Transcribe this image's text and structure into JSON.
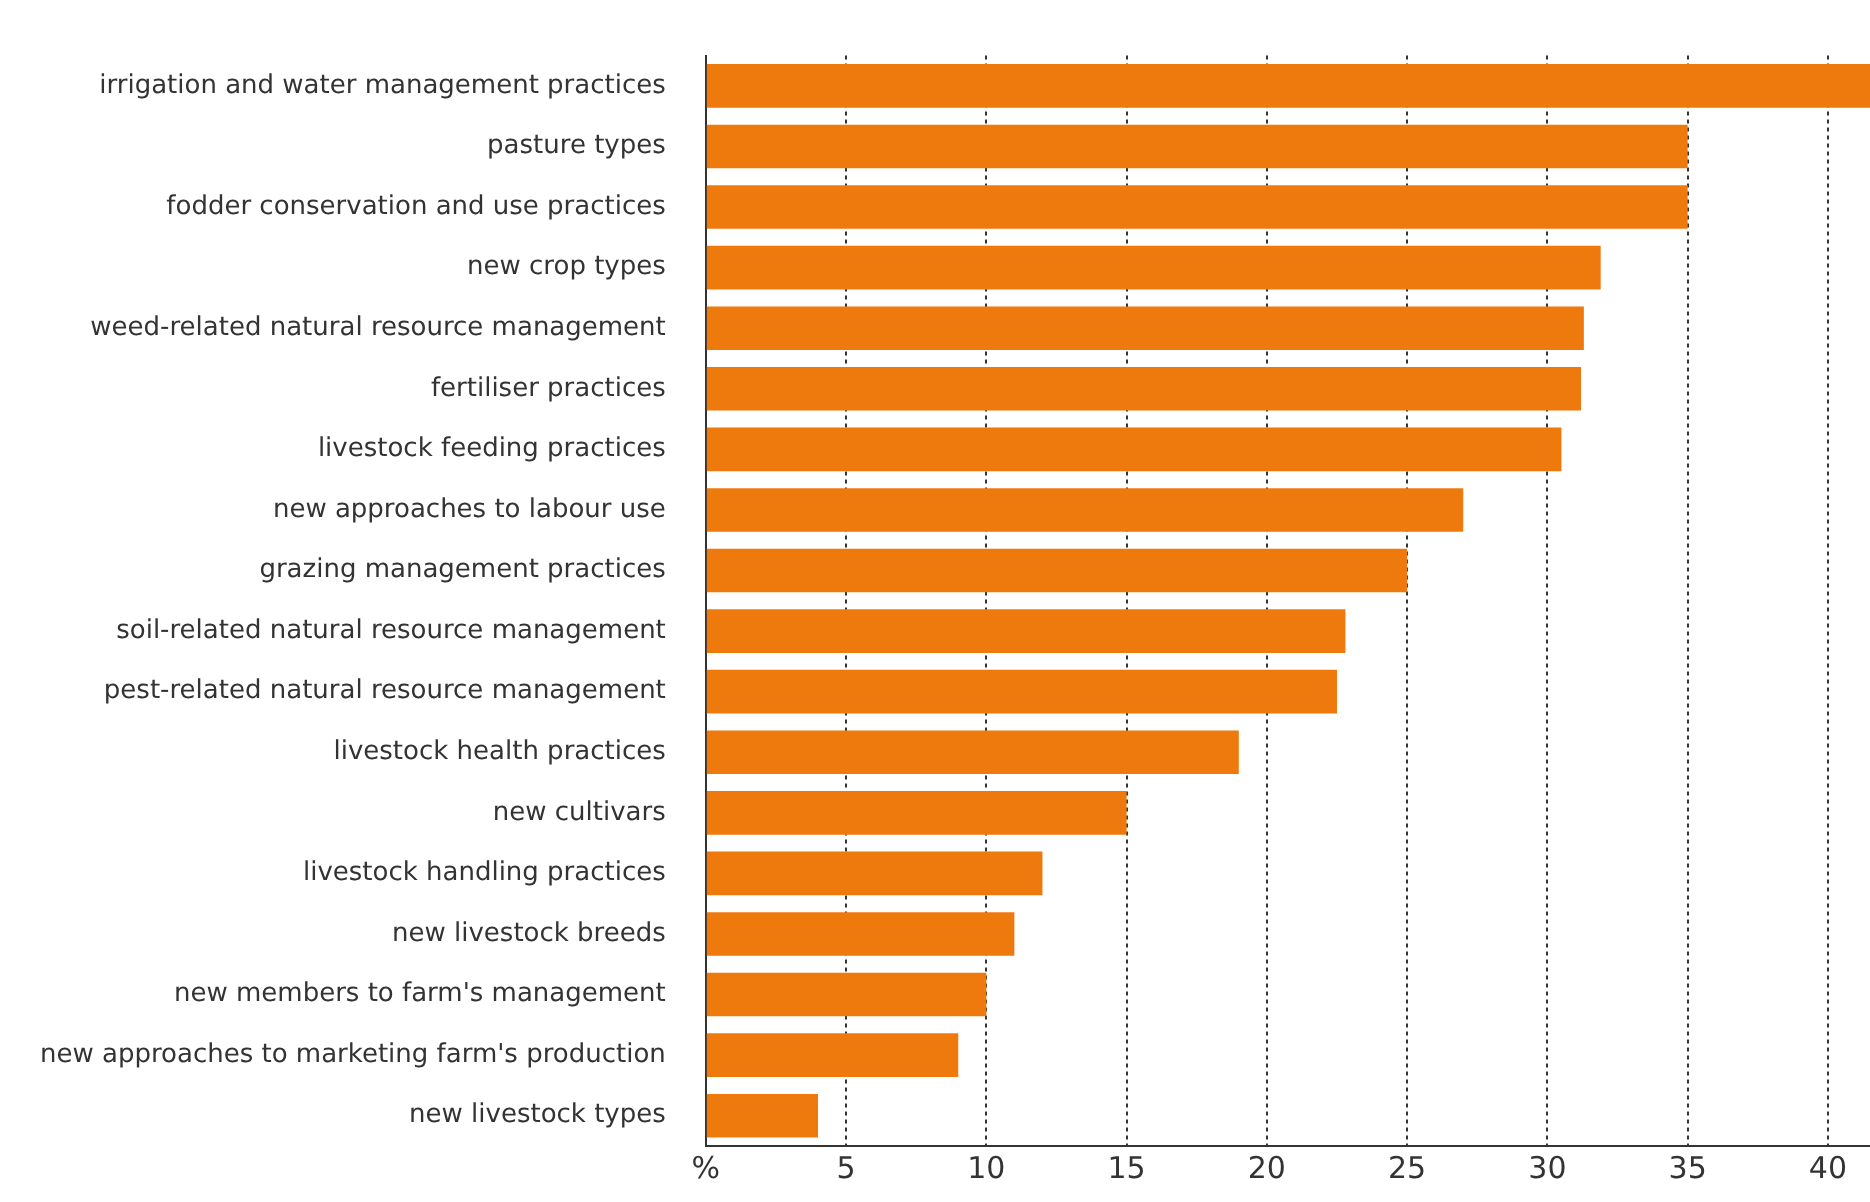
{
  "chart_data": {
    "type": "bar",
    "orientation": "horizontal",
    "categories": [
      "irrigation and water management practices",
      "pasture types",
      "fodder conservation and use practices",
      "new crop types",
      "weed-related natural resource management",
      "fertiliser practices",
      "livestock feeding practices",
      "new approaches to labour use",
      "grazing management practices",
      "soil-related natural resource management",
      "pest-related natural resource management",
      "livestock health practices",
      "new cultivars",
      "livestock handling practices",
      "new livestock breeds",
      "new members to farm's management",
      "new approaches to marketing farm's production",
      "new livestock types"
    ],
    "values": [
      41.5,
      35,
      35,
      31.9,
      31.3,
      31.2,
      30.5,
      27,
      25,
      22.8,
      22.5,
      19,
      15,
      12,
      11,
      10,
      9,
      4
    ],
    "color": "#ee7a0e",
    "xlim": [
      0,
      41.5
    ],
    "xticks": [
      {
        "value": 0,
        "label": "%"
      },
      5,
      10,
      15,
      20,
      25,
      30,
      35,
      40
    ],
    "grid": "x",
    "legend": false
  }
}
